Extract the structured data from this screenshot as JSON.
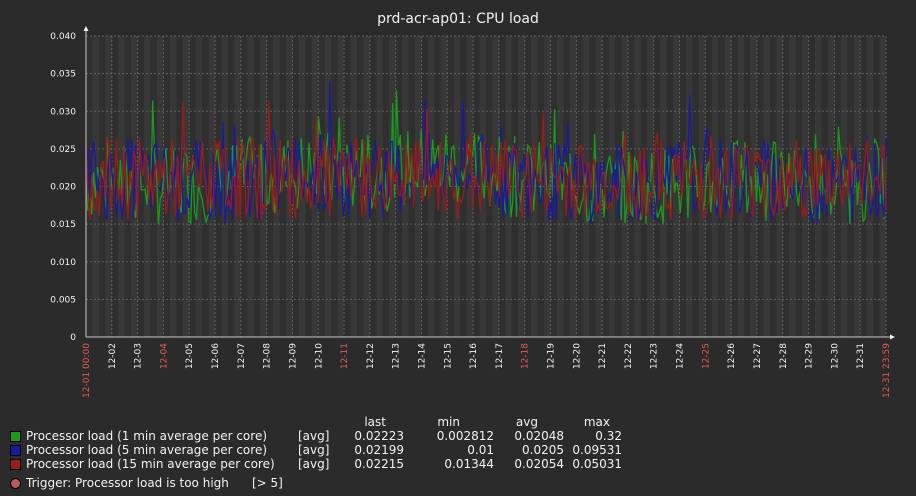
{
  "chart_data": {
    "type": "line",
    "title": "prd-acr-ap01: CPU load",
    "y_ticks": [
      "0.040",
      "0.035",
      "0.030",
      "0.025",
      "0.020",
      "0.015",
      "0.010",
      "0.005",
      "0"
    ],
    "ylim": [
      0,
      0.04
    ],
    "x_ticks": [
      {
        "label": "12-01 00:00",
        "highlight": true
      },
      {
        "label": "12-02",
        "highlight": false
      },
      {
        "label": "12-03",
        "highlight": false
      },
      {
        "label": "12-04",
        "highlight": true
      },
      {
        "label": "12-05",
        "highlight": false
      },
      {
        "label": "12-06",
        "highlight": false
      },
      {
        "label": "12-07",
        "highlight": false
      },
      {
        "label": "12-08",
        "highlight": false
      },
      {
        "label": "12-09",
        "highlight": false
      },
      {
        "label": "12-10",
        "highlight": false
      },
      {
        "label": "12-11",
        "highlight": true
      },
      {
        "label": "12-12",
        "highlight": false
      },
      {
        "label": "12-13",
        "highlight": false
      },
      {
        "label": "12-14",
        "highlight": false
      },
      {
        "label": "12-15",
        "highlight": false
      },
      {
        "label": "12-16",
        "highlight": false
      },
      {
        "label": "12-17",
        "highlight": false
      },
      {
        "label": "12-18",
        "highlight": true
      },
      {
        "label": "12-19",
        "highlight": false
      },
      {
        "label": "12-20",
        "highlight": false
      },
      {
        "label": "12-21",
        "highlight": false
      },
      {
        "label": "12-22",
        "highlight": false
      },
      {
        "label": "12-23",
        "highlight": false
      },
      {
        "label": "12-24",
        "highlight": false
      },
      {
        "label": "12-25",
        "highlight": true
      },
      {
        "label": "12-26",
        "highlight": false
      },
      {
        "label": "12-27",
        "highlight": false
      },
      {
        "label": "12-28",
        "highlight": false
      },
      {
        "label": "12-29",
        "highlight": false
      },
      {
        "label": "12-30",
        "highlight": false
      },
      {
        "label": "12-31",
        "highlight": false
      },
      {
        "label": "12-31 23:59",
        "highlight": true
      }
    ],
    "series": [
      {
        "name": "Processor load (1 min average per core)",
        "color": "#1a9b1a",
        "x": [
          "12-01",
          "12-04",
          "12-07",
          "12-10",
          "12-13",
          "12-16",
          "12-18",
          "12-21",
          "12-24",
          "12-27",
          "12-30",
          "12-31"
        ],
        "values": [
          0.021,
          0.02,
          0.021,
          0.022,
          0.022,
          0.023,
          0.021,
          0.02,
          0.02,
          0.021,
          0.02,
          0.021
        ]
      },
      {
        "name": "Processor load (5 min average per core)",
        "color": "#1a1aa0",
        "x": [
          "12-01",
          "12-04",
          "12-07",
          "12-10",
          "12-13",
          "12-16",
          "12-18",
          "12-21",
          "12-24",
          "12-27",
          "12-30",
          "12-31"
        ],
        "values": [
          0.021,
          0.021,
          0.02,
          0.022,
          0.021,
          0.022,
          0.021,
          0.02,
          0.021,
          0.021,
          0.02,
          0.021
        ]
      },
      {
        "name": "Processor load (15 min average per core)",
        "color": "#9b1a1a",
        "x": [
          "12-01",
          "12-04",
          "12-07",
          "12-10",
          "12-13",
          "12-16",
          "12-18",
          "12-21",
          "12-24",
          "12-27",
          "12-30",
          "12-31"
        ],
        "values": [
          0.021,
          0.021,
          0.021,
          0.021,
          0.021,
          0.021,
          0.021,
          0.021,
          0.021,
          0.021,
          0.021,
          0.021
        ]
      }
    ],
    "trigger": {
      "label": "Trigger: Processor load is too high",
      "condition": "[> 5]",
      "color": "#b65b5b"
    },
    "grid": true
  },
  "legend": {
    "headers": {
      "last": "last",
      "min": "min",
      "avg": "avg",
      "max": "max"
    },
    "rows": [
      {
        "name": "Processor load (1 min average per core)",
        "func": "[avg]",
        "last": "0.02223",
        "min": "0.002812",
        "avg": "0.02048",
        "max": "0.32",
        "color": "#1a9b1a"
      },
      {
        "name": "Processor load (5 min average per core)",
        "func": "[avg]",
        "last": "0.02199",
        "min": "0.01",
        "avg": "0.0205",
        "max": "0.09531",
        "color": "#1a1aa0"
      },
      {
        "name": "Processor load (15 min average per core)",
        "func": "[avg]",
        "last": "0.02215",
        "min": "0.01344",
        "avg": "0.02054",
        "max": "0.05031",
        "color": "#9b1a1a"
      }
    ]
  }
}
